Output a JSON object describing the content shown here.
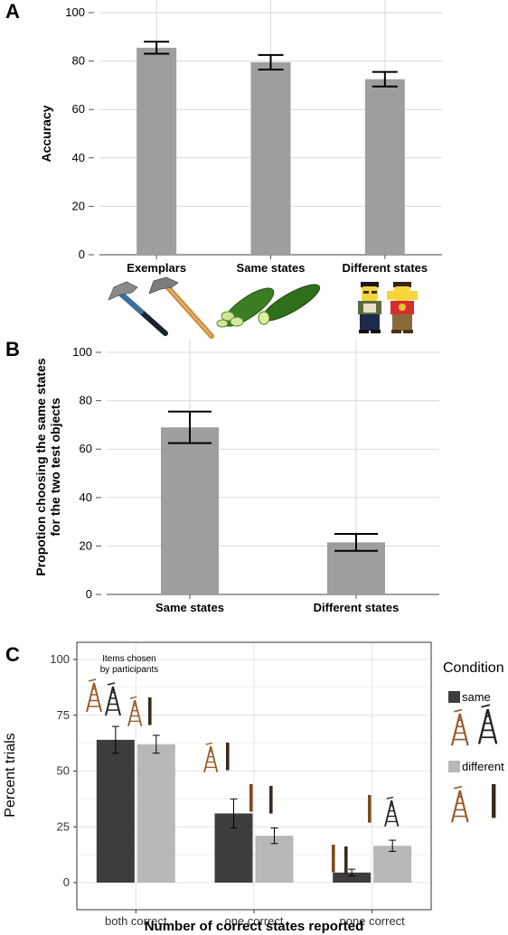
{
  "chart_data": [
    {
      "panel": "A",
      "type": "bar",
      "categories": [
        "Exemplars",
        "Same states",
        "Different states"
      ],
      "values": [
        85.5,
        79.5,
        72.5
      ],
      "error_low": [
        83,
        76.5,
        69.5
      ],
      "error_high": [
        88,
        82.5,
        75.5
      ],
      "ylabel": "Accuracy",
      "ylim": [
        0,
        100
      ],
      "yticks": [
        0,
        20,
        40,
        60,
        80,
        100
      ],
      "grid": true,
      "bar_color": "#9e9e9e",
      "image_icons": [
        "hammer-icon",
        "cucumber-icon",
        "lego-figure-icon"
      ]
    },
    {
      "panel": "B",
      "type": "bar",
      "categories": [
        "Same states",
        "Different states"
      ],
      "values": [
        69,
        21.5
      ],
      "error_low": [
        62.5,
        18
      ],
      "error_high": [
        75.5,
        25
      ],
      "ylabel": "Propotion choosing the same states for the two test objects",
      "ylabel_lines": [
        "Propotion choosing the same states",
        "for the two test objects"
      ],
      "ylim": [
        0,
        100
      ],
      "yticks": [
        0,
        20,
        40,
        60,
        80,
        100
      ],
      "grid": true,
      "bar_color": "#9e9e9e"
    },
    {
      "panel": "C",
      "type": "bar",
      "categories": [
        "both correct",
        "one correct",
        "none correct"
      ],
      "series": [
        {
          "name": "same",
          "values": [
            64,
            31,
            4.5
          ],
          "error_low": [
            58,
            24.5,
            3
          ],
          "error_high": [
            70,
            37.5,
            6
          ],
          "color": "#3d3d3d"
        },
        {
          "name": "different",
          "values": [
            62,
            21,
            16.5
          ],
          "error_low": [
            58,
            17.5,
            14
          ],
          "error_high": [
            66,
            24.5,
            19
          ],
          "color": "#b8b8b8"
        }
      ],
      "xlabel": "Number of correct states reported",
      "ylabel": "Percent trials",
      "ylim": [
        0,
        100
      ],
      "yticks": [
        0,
        25,
        50,
        75,
        100
      ],
      "legend_title": "Condition",
      "legend_placement": "right",
      "annotation": "Items chosen by participants",
      "annotation_lines": [
        "Items chosen",
        "by participants"
      ],
      "grid": true,
      "image_icons": [
        "ladder-icon"
      ]
    }
  ],
  "panel_labels": [
    "A",
    "B",
    "C"
  ]
}
